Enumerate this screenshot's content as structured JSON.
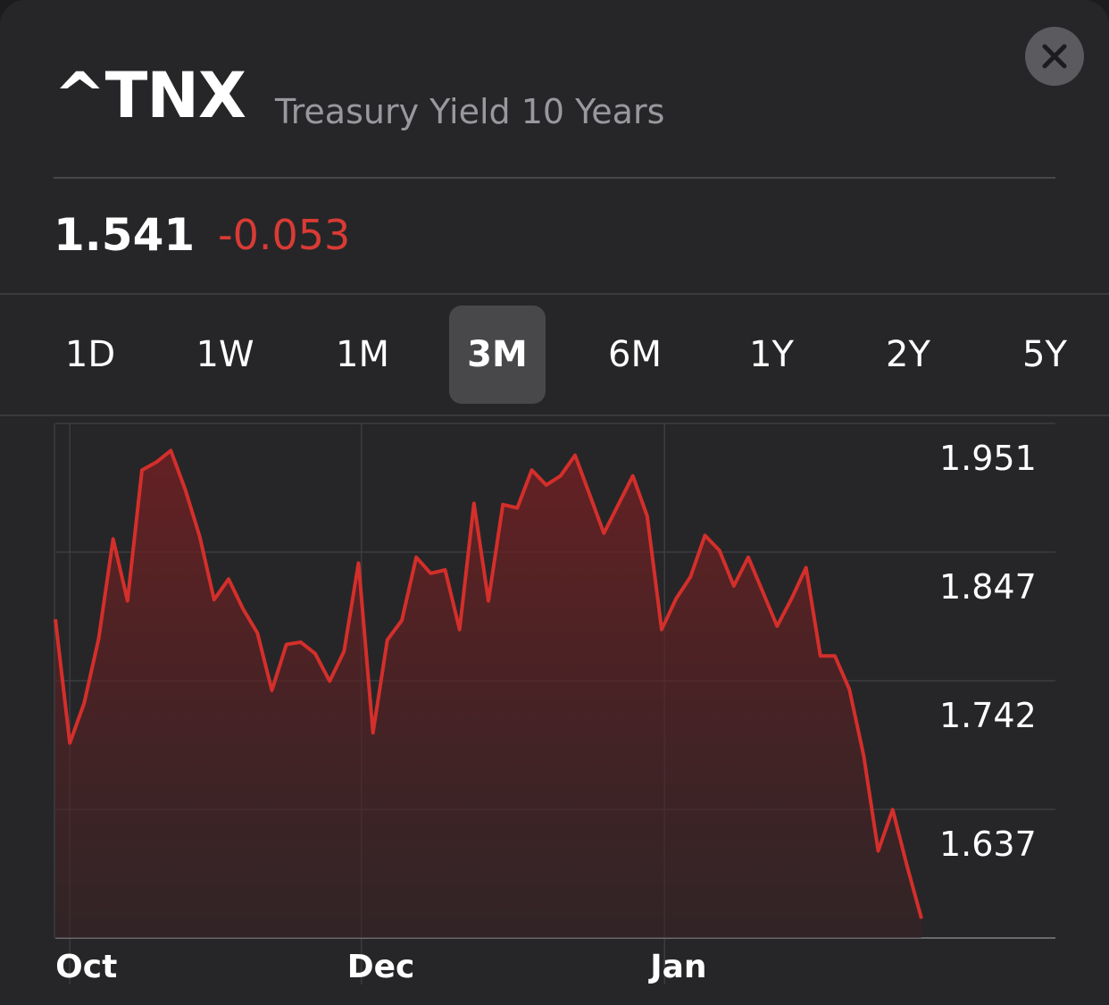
{
  "header": {
    "symbol": "^TNX",
    "name": "Treasury Yield 10 Years",
    "price": "1.541",
    "change": "-0.053"
  },
  "colors": {
    "negative": "#d93b35",
    "line": "#d42f2b"
  },
  "icons": {
    "close": "close-icon"
  },
  "tabs": [
    {
      "label": "1D"
    },
    {
      "label": "1W"
    },
    {
      "label": "1M"
    },
    {
      "label": "3M",
      "active": true
    },
    {
      "label": "6M"
    },
    {
      "label": "1Y"
    },
    {
      "label": "2Y"
    },
    {
      "label": "5Y"
    }
  ],
  "chart_data": {
    "type": "area",
    "ylim": [
      1.532,
      1.951
    ],
    "y_ticks": [
      1.951,
      1.847,
      1.742,
      1.637
    ],
    "x_ticks": [
      {
        "label": "Oct",
        "x": 1
      },
      {
        "label": "Dec",
        "x": 21.2
      },
      {
        "label": "Jan",
        "x": 42.2
      }
    ],
    "xlim": [
      -1,
      62.5
    ],
    "values": [
      1.799,
      1.691,
      1.726,
      1.782,
      1.869,
      1.815,
      1.929,
      1.936,
      1.946,
      1.912,
      1.871,
      1.816,
      1.834,
      1.808,
      1.787,
      1.737,
      1.777,
      1.779,
      1.769,
      1.745,
      1.771,
      1.848,
      1.7,
      1.781,
      1.798,
      1.853,
      1.839,
      1.842,
      1.79,
      1.9,
      1.815,
      1.899,
      1.896,
      1.929,
      1.916,
      1.924,
      1.942,
      1.908,
      1.874,
      1.899,
      1.924,
      1.889,
      1.79,
      1.817,
      1.836,
      1.872,
      1.859,
      1.828,
      1.853,
      1.823,
      1.793,
      1.817,
      1.844,
      1.767,
      1.767,
      1.738,
      1.68,
      1.597,
      1.633,
      1.584,
      1.538
    ]
  }
}
